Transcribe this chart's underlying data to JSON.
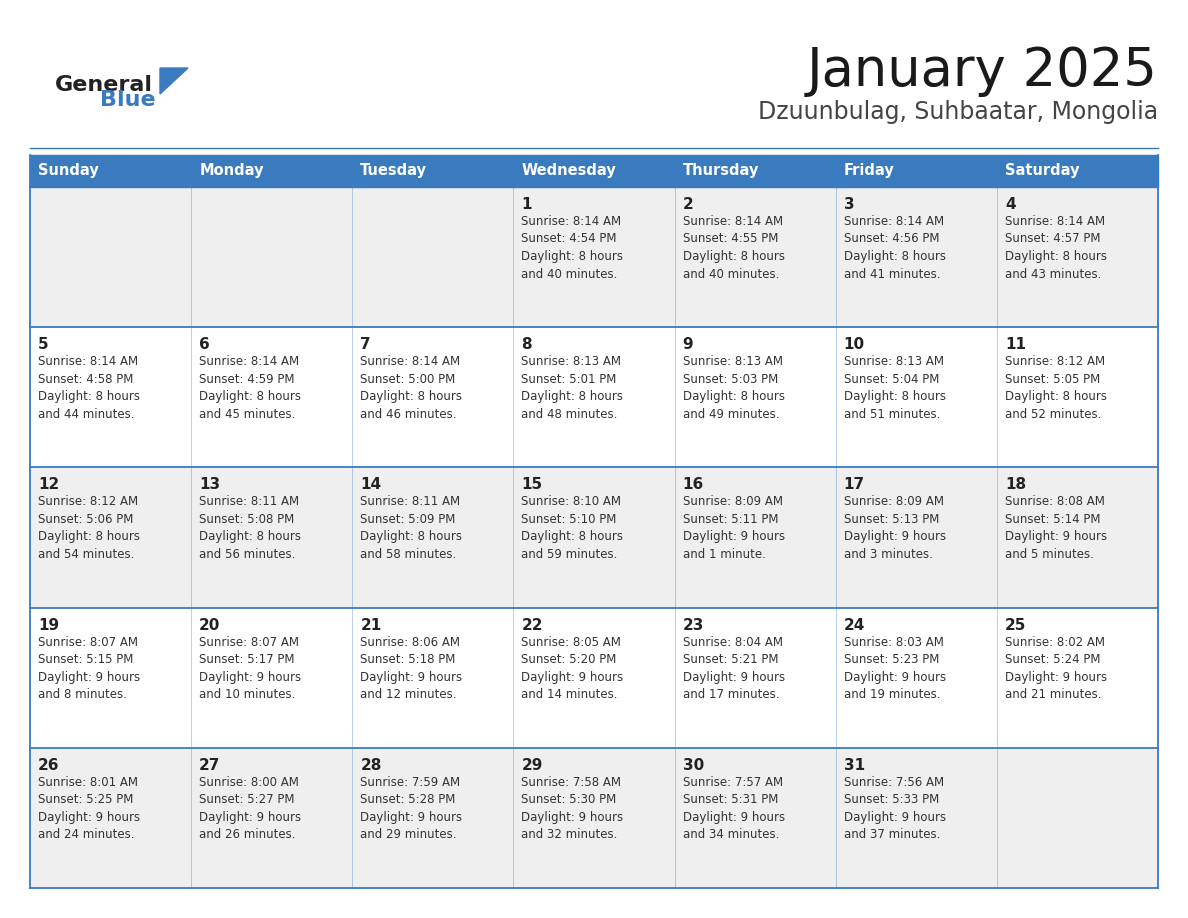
{
  "title": "January 2025",
  "subtitle": "Dzuunbulag, Suhbaatar, Mongolia",
  "header_color": "#3a7abf",
  "header_text_color": "#ffffff",
  "day_names": [
    "Sunday",
    "Monday",
    "Tuesday",
    "Wednesday",
    "Thursday",
    "Friday",
    "Saturday"
  ],
  "background_color": "#ffffff",
  "row_color_odd": "#efefef",
  "row_color_even": "#ffffff",
  "cell_border_color": "#3a7abf",
  "day_num_color": "#222222",
  "info_color": "#333333",
  "calendar": [
    [
      null,
      null,
      null,
      {
        "day": 1,
        "sunrise": "8:14 AM",
        "sunset": "4:54 PM",
        "daylight": "8 hours",
        "daylight2": "and 40 minutes."
      },
      {
        "day": 2,
        "sunrise": "8:14 AM",
        "sunset": "4:55 PM",
        "daylight": "8 hours",
        "daylight2": "and 40 minutes."
      },
      {
        "day": 3,
        "sunrise": "8:14 AM",
        "sunset": "4:56 PM",
        "daylight": "8 hours",
        "daylight2": "and 41 minutes."
      },
      {
        "day": 4,
        "sunrise": "8:14 AM",
        "sunset": "4:57 PM",
        "daylight": "8 hours",
        "daylight2": "and 43 minutes."
      }
    ],
    [
      {
        "day": 5,
        "sunrise": "8:14 AM",
        "sunset": "4:58 PM",
        "daylight": "8 hours",
        "daylight2": "and 44 minutes."
      },
      {
        "day": 6,
        "sunrise": "8:14 AM",
        "sunset": "4:59 PM",
        "daylight": "8 hours",
        "daylight2": "and 45 minutes."
      },
      {
        "day": 7,
        "sunrise": "8:14 AM",
        "sunset": "5:00 PM",
        "daylight": "8 hours",
        "daylight2": "and 46 minutes."
      },
      {
        "day": 8,
        "sunrise": "8:13 AM",
        "sunset": "5:01 PM",
        "daylight": "8 hours",
        "daylight2": "and 48 minutes."
      },
      {
        "day": 9,
        "sunrise": "8:13 AM",
        "sunset": "5:03 PM",
        "daylight": "8 hours",
        "daylight2": "and 49 minutes."
      },
      {
        "day": 10,
        "sunrise": "8:13 AM",
        "sunset": "5:04 PM",
        "daylight": "8 hours",
        "daylight2": "and 51 minutes."
      },
      {
        "day": 11,
        "sunrise": "8:12 AM",
        "sunset": "5:05 PM",
        "daylight": "8 hours",
        "daylight2": "and 52 minutes."
      }
    ],
    [
      {
        "day": 12,
        "sunrise": "8:12 AM",
        "sunset": "5:06 PM",
        "daylight": "8 hours",
        "daylight2": "and 54 minutes."
      },
      {
        "day": 13,
        "sunrise": "8:11 AM",
        "sunset": "5:08 PM",
        "daylight": "8 hours",
        "daylight2": "and 56 minutes."
      },
      {
        "day": 14,
        "sunrise": "8:11 AM",
        "sunset": "5:09 PM",
        "daylight": "8 hours",
        "daylight2": "and 58 minutes."
      },
      {
        "day": 15,
        "sunrise": "8:10 AM",
        "sunset": "5:10 PM",
        "daylight": "8 hours",
        "daylight2": "and 59 minutes."
      },
      {
        "day": 16,
        "sunrise": "8:09 AM",
        "sunset": "5:11 PM",
        "daylight": "9 hours",
        "daylight2": "and 1 minute."
      },
      {
        "day": 17,
        "sunrise": "8:09 AM",
        "sunset": "5:13 PM",
        "daylight": "9 hours",
        "daylight2": "and 3 minutes."
      },
      {
        "day": 18,
        "sunrise": "8:08 AM",
        "sunset": "5:14 PM",
        "daylight": "9 hours",
        "daylight2": "and 5 minutes."
      }
    ],
    [
      {
        "day": 19,
        "sunrise": "8:07 AM",
        "sunset": "5:15 PM",
        "daylight": "9 hours",
        "daylight2": "and 8 minutes."
      },
      {
        "day": 20,
        "sunrise": "8:07 AM",
        "sunset": "5:17 PM",
        "daylight": "9 hours",
        "daylight2": "and 10 minutes."
      },
      {
        "day": 21,
        "sunrise": "8:06 AM",
        "sunset": "5:18 PM",
        "daylight": "9 hours",
        "daylight2": "and 12 minutes."
      },
      {
        "day": 22,
        "sunrise": "8:05 AM",
        "sunset": "5:20 PM",
        "daylight": "9 hours",
        "daylight2": "and 14 minutes."
      },
      {
        "day": 23,
        "sunrise": "8:04 AM",
        "sunset": "5:21 PM",
        "daylight": "9 hours",
        "daylight2": "and 17 minutes."
      },
      {
        "day": 24,
        "sunrise": "8:03 AM",
        "sunset": "5:23 PM",
        "daylight": "9 hours",
        "daylight2": "and 19 minutes."
      },
      {
        "day": 25,
        "sunrise": "8:02 AM",
        "sunset": "5:24 PM",
        "daylight": "9 hours",
        "daylight2": "and 21 minutes."
      }
    ],
    [
      {
        "day": 26,
        "sunrise": "8:01 AM",
        "sunset": "5:25 PM",
        "daylight": "9 hours",
        "daylight2": "and 24 minutes."
      },
      {
        "day": 27,
        "sunrise": "8:00 AM",
        "sunset": "5:27 PM",
        "daylight": "9 hours",
        "daylight2": "and 26 minutes."
      },
      {
        "day": 28,
        "sunrise": "7:59 AM",
        "sunset": "5:28 PM",
        "daylight": "9 hours",
        "daylight2": "and 29 minutes."
      },
      {
        "day": 29,
        "sunrise": "7:58 AM",
        "sunset": "5:30 PM",
        "daylight": "9 hours",
        "daylight2": "and 32 minutes."
      },
      {
        "day": 30,
        "sunrise": "7:57 AM",
        "sunset": "5:31 PM",
        "daylight": "9 hours",
        "daylight2": "and 34 minutes."
      },
      {
        "day": 31,
        "sunrise": "7:56 AM",
        "sunset": "5:33 PM",
        "daylight": "9 hours",
        "daylight2": "and 37 minutes."
      },
      null
    ]
  ],
  "logo_text1": "General",
  "logo_text2": "Blue",
  "logo_color1": "#222222",
  "logo_color2": "#3a7abf",
  "fig_width": 11.88,
  "fig_height": 9.18,
  "dpi": 100
}
